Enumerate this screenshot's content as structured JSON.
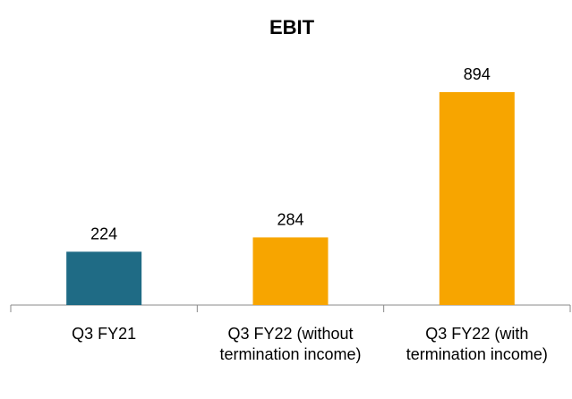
{
  "chart_data": {
    "type": "bar",
    "title": "EBIT",
    "categories": [
      "Q3 FY21",
      "Q3 FY22 (without termination income)",
      "Q3 FY22 (with termination income)"
    ],
    "values": [
      224,
      284,
      894
    ],
    "colors": [
      "#1f6b85",
      "#f7a500",
      "#f7a500"
    ]
  }
}
